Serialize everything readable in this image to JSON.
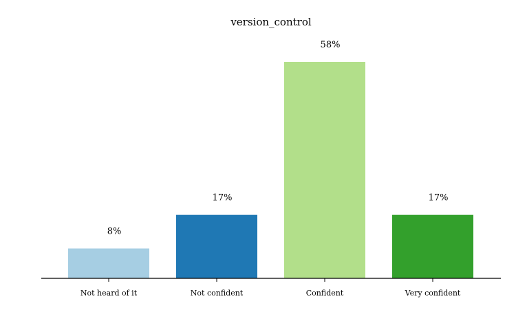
{
  "chart_data": {
    "type": "bar",
    "title": "version_control",
    "categories": [
      "Not heard of it",
      "Not confident",
      "Confident",
      "Very confident"
    ],
    "values": [
      8,
      17,
      58,
      17
    ],
    "value_labels": [
      "8%",
      "17%",
      "58%",
      "17%"
    ],
    "colors": [
      "#a6cee3",
      "#1f78b4",
      "#b2df8a",
      "#33a02c"
    ],
    "xlabel": "",
    "ylabel": "",
    "ylim": [
      0,
      58
    ],
    "grid": false,
    "legend": "none"
  }
}
